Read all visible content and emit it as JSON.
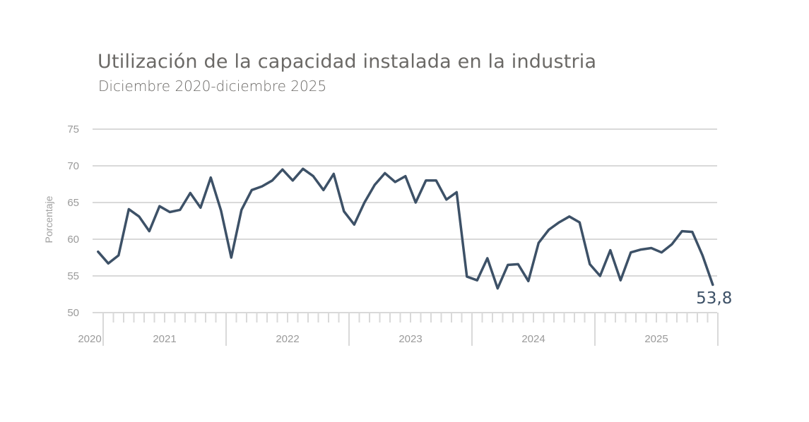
{
  "chart_data": {
    "type": "line",
    "title": "Utilización de la capacidad instalada en la industria",
    "subtitle": "Diciembre 2020-diciembre 2025",
    "xlabel": "",
    "ylabel": "Porcentaje",
    "ylim": [
      50,
      75
    ],
    "yticks": [
      "50",
      "55",
      "60",
      "65",
      "70",
      "75"
    ],
    "grid": true,
    "x_groups": [
      "2020",
      "2021",
      "2022",
      "2023",
      "2024",
      "2025"
    ],
    "x": [
      "2020-12",
      "2021-01",
      "2021-02",
      "2021-03",
      "2021-04",
      "2021-05",
      "2021-06",
      "2021-07",
      "2021-08",
      "2021-09",
      "2021-10",
      "2021-11",
      "2021-12",
      "2022-01",
      "2022-02",
      "2022-03",
      "2022-04",
      "2022-05",
      "2022-06",
      "2022-07",
      "2022-08",
      "2022-09",
      "2022-10",
      "2022-11",
      "2022-12",
      "2023-01",
      "2023-02",
      "2023-03",
      "2023-04",
      "2023-05",
      "2023-06",
      "2023-07",
      "2023-08",
      "2023-09",
      "2023-10",
      "2023-11",
      "2023-12",
      "2024-01",
      "2024-02",
      "2024-03",
      "2024-04",
      "2024-05",
      "2024-06",
      "2024-07",
      "2024-08",
      "2024-09",
      "2024-10",
      "2024-11",
      "2024-12",
      "2025-01",
      "2025-02",
      "2025-03",
      "2025-04",
      "2025-05",
      "2025-06",
      "2025-07",
      "2025-08",
      "2025-09",
      "2025-10",
      "2025-11",
      "2025-12"
    ],
    "series": [
      {
        "name": "Utilización de la capacidad instalada",
        "color": "#3d5167",
        "values": [
          58.3,
          56.7,
          57.8,
          64.1,
          63.1,
          61.1,
          64.5,
          63.7,
          64.0,
          66.3,
          64.3,
          68.4,
          63.9,
          57.5,
          64.0,
          66.7,
          67.2,
          68.0,
          69.5,
          68.0,
          69.6,
          68.6,
          66.7,
          68.9,
          63.8,
          62.0,
          65.0,
          67.4,
          69.0,
          67.8,
          68.6,
          65.0,
          68.0,
          68.0,
          65.4,
          66.4,
          54.9,
          54.4,
          57.4,
          53.3,
          56.5,
          56.6,
          54.3,
          59.5,
          61.3,
          62.3,
          63.1,
          62.3,
          56.6,
          55.0,
          58.5,
          54.4,
          58.2,
          58.6,
          58.8,
          58.2,
          59.3,
          61.1,
          61.0,
          57.8,
          53.8
        ]
      }
    ],
    "annotations": [
      {
        "text": "53,8",
        "x": "2025-12"
      }
    ]
  }
}
